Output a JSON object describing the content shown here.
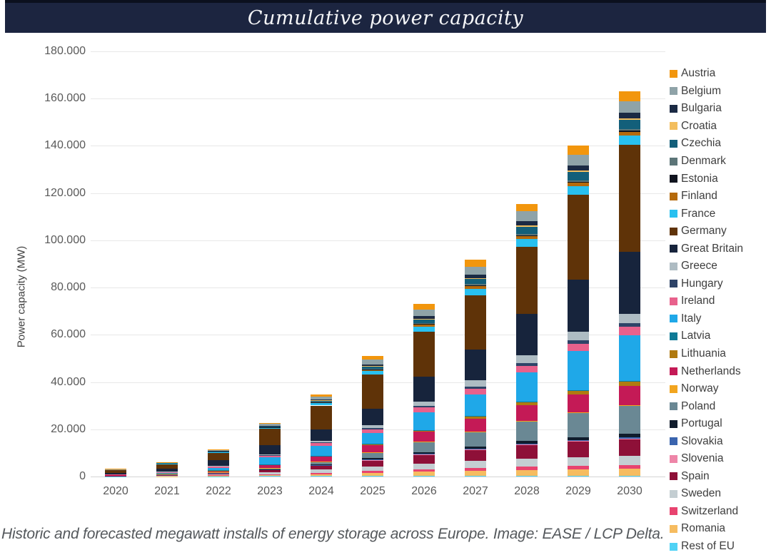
{
  "title": "Cumulative power capacity",
  "caption": "Historic and forecasted megawatt installs of energy storage across Europe. Image: EASE / LCP Delta.",
  "colors": {
    "title_bar_bg": "#1C2540",
    "title_text": "#F5F6F8",
    "grid": "#E8E8E8",
    "axis_text": "#595959",
    "legend_text": "#3E3E3E",
    "caption_text": "#54585C"
  },
  "chart_data": {
    "type": "bar",
    "stacked": true,
    "stack_order": "bottom-to-top is reverse of series list (Rest of EU at bottom, Austria on top)",
    "title": "Cumulative power capacity",
    "xlabel": "",
    "ylabel": "Power capacity (MW)",
    "ylim": [
      0,
      180000
    ],
    "grid": "horizontal",
    "legend_position": "right",
    "y_tick_values": [
      0,
      20000,
      40000,
      60000,
      80000,
      100000,
      120000,
      140000,
      160000,
      180000
    ],
    "y_tick_labels": [
      "0",
      "20.000",
      "40.000",
      "60.000",
      "80.000",
      "100.000",
      "120.000",
      "140.000",
      "160.000",
      "180.000"
    ],
    "categories": [
      "2020",
      "2021",
      "2022",
      "2023",
      "2024",
      "2025",
      "2026",
      "2027",
      "2028",
      "2029",
      "2030"
    ],
    "totals_mw": [
      3300,
      6100,
      11500,
      22700,
      34800,
      50900,
      73000,
      91800,
      115500,
      140000,
      163000
    ],
    "series": [
      {
        "name": "Austria",
        "color": "#F2960D",
        "values": [
          150,
          200,
          300,
          500,
          900,
          1500,
          2400,
          2900,
          3300,
          3700,
          4000
        ]
      },
      {
        "name": "Belgium",
        "color": "#8FA3A8",
        "values": [
          100,
          150,
          400,
          800,
          1300,
          2000,
          2700,
          3300,
          4000,
          4600,
          5000
        ]
      },
      {
        "name": "Bulgaria",
        "color": "#1B2A44",
        "values": [
          10,
          20,
          50,
          100,
          300,
          600,
          1100,
          1500,
          1900,
          2200,
          2400
        ]
      },
      {
        "name": "Croatia",
        "color": "#F3BE5E",
        "values": [
          10,
          20,
          30,
          60,
          100,
          200,
          300,
          400,
          500,
          550,
          600
        ]
      },
      {
        "name": "Czechia",
        "color": "#135F7A",
        "values": [
          30,
          60,
          100,
          200,
          500,
          1000,
          1600,
          2300,
          3000,
          3500,
          3800
        ]
      },
      {
        "name": "Denmark",
        "color": "#5C7578",
        "values": [
          20,
          40,
          60,
          100,
          200,
          300,
          400,
          500,
          600,
          650,
          700
        ]
      },
      {
        "name": "Estonia",
        "color": "#10141F",
        "values": [
          10,
          20,
          30,
          50,
          100,
          150,
          250,
          350,
          400,
          450,
          500
        ]
      },
      {
        "name": "Finland",
        "color": "#B56A0C",
        "values": [
          30,
          60,
          100,
          200,
          350,
          550,
          800,
          1000,
          1200,
          1400,
          1500
        ]
      },
      {
        "name": "France",
        "color": "#28C0F0",
        "values": [
          100,
          200,
          350,
          600,
          1000,
          1500,
          2100,
          2700,
          3300,
          3700,
          4000
        ]
      },
      {
        "name": "Germany",
        "color": "#5F3308",
        "values": [
          1215,
          2100,
          3125,
          6800,
          10000,
          14500,
          19000,
          23000,
          28500,
          36000,
          45500
        ]
      },
      {
        "name": "Great Britain",
        "color": "#17243C",
        "values": [
          600,
          1200,
          2400,
          3900,
          5000,
          6800,
          10500,
          13000,
          17500,
          22000,
          26000
        ]
      },
      {
        "name": "Greece",
        "color": "#AEBCC3",
        "values": [
          20,
          50,
          100,
          300,
          700,
          1300,
          2000,
          2700,
          3300,
          3700,
          4000
        ]
      },
      {
        "name": "Hungary",
        "color": "#2E4468",
        "values": [
          20,
          40,
          80,
          150,
          300,
          500,
          700,
          900,
          1100,
          1300,
          1500
        ]
      },
      {
        "name": "Ireland",
        "color": "#E8618C",
        "values": [
          200,
          400,
          700,
          900,
          1200,
          1600,
          2000,
          2400,
          2800,
          3200,
          3600
        ]
      },
      {
        "name": "Italy",
        "color": "#1FA8E8",
        "values": [
          100,
          275,
          1100,
          3020,
          4080,
          4510,
          7400,
          9130,
          12430,
          16600,
          19500
        ]
      },
      {
        "name": "Latvia",
        "color": "#0E7A96",
        "values": [
          5,
          10,
          20,
          30,
          50,
          100,
          150,
          200,
          250,
          280,
          300
        ]
      },
      {
        "name": "Lithuania",
        "color": "#B07A10",
        "values": [
          10,
          30,
          60,
          120,
          250,
          450,
          700,
          1000,
          1300,
          1550,
          1800
        ]
      },
      {
        "name": "Netherlands",
        "color": "#C41A56",
        "values": [
          150,
          300,
          600,
          1200,
          2000,
          3000,
          4200,
          5400,
          6500,
          7300,
          8000
        ]
      },
      {
        "name": "Norway",
        "color": "#F2A51F",
        "values": [
          10,
          20,
          30,
          50,
          80,
          120,
          160,
          200,
          240,
          270,
          300
        ]
      },
      {
        "name": "Poland",
        "color": "#6A8894",
        "values": [
          50,
          100,
          200,
          500,
          1200,
          2500,
          4200,
          6200,
          8400,
          10400,
          12000
        ]
      },
      {
        "name": "Portugal",
        "color": "#101C2C",
        "values": [
          20,
          40,
          80,
          150,
          300,
          500,
          700,
          900,
          1100,
          1300,
          1500
        ]
      },
      {
        "name": "Slovakia",
        "color": "#3A64AE",
        "values": [
          10,
          20,
          40,
          70,
          120,
          180,
          240,
          300,
          350,
          380,
          400
        ]
      },
      {
        "name": "Slovenia",
        "color": "#EE85A8",
        "values": [
          10,
          15,
          25,
          40,
          70,
          110,
          150,
          200,
          250,
          280,
          300
        ]
      },
      {
        "name": "Spain",
        "color": "#8E1038",
        "values": [
          150,
          300,
          600,
          1100,
          1800,
          2700,
          3700,
          4700,
          5700,
          6400,
          7000
        ]
      },
      {
        "name": "Sweden",
        "color": "#C4CED2",
        "values": [
          100,
          150,
          400,
          800,
          1300,
          1900,
          2500,
          3000,
          3500,
          3800,
          4000
        ]
      },
      {
        "name": "Switzerland",
        "color": "#E8436F",
        "values": [
          100,
          150,
          250,
          400,
          600,
          800,
          1000,
          1150,
          1300,
          1400,
          1500
        ]
      },
      {
        "name": "Romania",
        "color": "#F6BC60",
        "values": [
          20,
          50,
          150,
          400,
          800,
          1300,
          1800,
          2200,
          2500,
          2800,
          3000
        ]
      },
      {
        "name": "Rest of EU",
        "color": "#4FD2F5",
        "values": [
          50,
          80,
          120,
          160,
          200,
          230,
          250,
          270,
          280,
          290,
          300
        ]
      }
    ]
  }
}
